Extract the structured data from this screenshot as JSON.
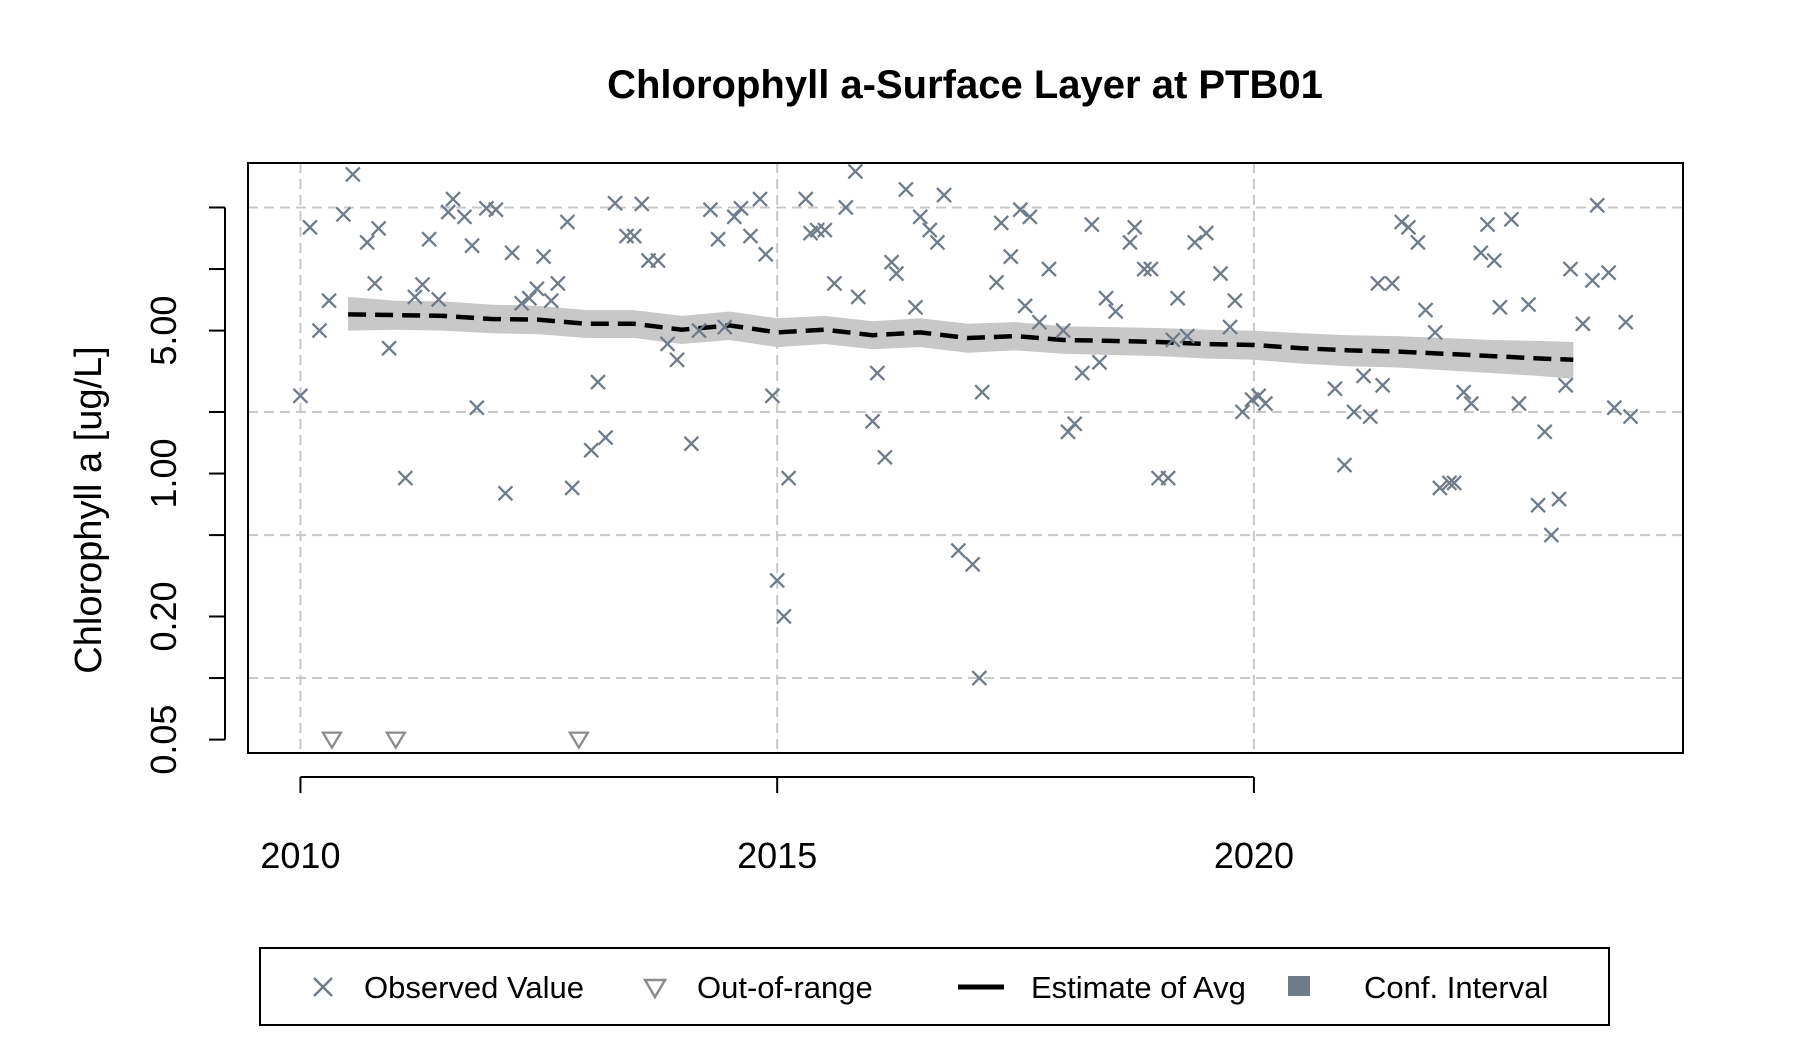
{
  "chart_data": {
    "type": "scatter",
    "title": "Chlorophyll a-Surface Layer at PTB01",
    "xlabel": "",
    "ylabel": "Chlorophyll a [ug/L]",
    "y_scale": "log",
    "xlim": [
      2009.45,
      2024.5
    ],
    "ylim": [
      0.043,
      33
    ],
    "x_ticks": [
      2010,
      2015,
      2020
    ],
    "x_tick_labels": [
      "2010",
      "2015",
      "2020"
    ],
    "y_ticks": [
      0.05,
      0.2,
      1,
      5
    ],
    "y_tick_labels": [
      "0.05",
      "0.20",
      "1.00",
      "5.00"
    ],
    "y_minor_ticks": [
      0.1,
      0.5,
      2,
      10,
      20
    ],
    "grid": "on",
    "legend_position": "bottom",
    "colors": {
      "observed": "#6e7b8b",
      "out_of_range": "#8c8c8c",
      "estimate": "#000000",
      "ci_band": "#c8c8c8",
      "ci_legend": "#6e7b8b"
    },
    "legend": [
      {
        "label": "Observed Value",
        "symbol": "x"
      },
      {
        "label": "Out-of-range",
        "symbol": "triangle-down"
      },
      {
        "label": "Estimate of Avg",
        "symbol": "dashed-line"
      },
      {
        "label": "Conf. Interval",
        "symbol": "square"
      }
    ],
    "series": [
      {
        "name": "Observed Value",
        "marker": "x",
        "points": [
          [
            2010.0,
            2.4
          ],
          [
            2010.1,
            16.0
          ],
          [
            2010.2,
            5.0
          ],
          [
            2010.3,
            7.0
          ],
          [
            2010.45,
            18.5
          ],
          [
            2010.55,
            29.0
          ],
          [
            2010.7,
            13.5
          ],
          [
            2010.78,
            8.5
          ],
          [
            2010.82,
            15.8
          ],
          [
            2010.93,
            4.1
          ],
          [
            2011.1,
            0.95
          ],
          [
            2011.2,
            7.3
          ],
          [
            2011.28,
            8.4
          ],
          [
            2011.35,
            14.0
          ],
          [
            2011.45,
            7.1
          ],
          [
            2011.55,
            19.0
          ],
          [
            2011.6,
            22.0
          ],
          [
            2011.72,
            18.0
          ],
          [
            2011.8,
            13.0
          ],
          [
            2011.85,
            2.1
          ],
          [
            2011.95,
            19.8
          ],
          [
            2012.05,
            19.5
          ],
          [
            2012.15,
            0.8
          ],
          [
            2012.22,
            12.0
          ],
          [
            2012.32,
            6.8
          ],
          [
            2012.4,
            7.2
          ],
          [
            2012.48,
            8.0
          ],
          [
            2012.55,
            11.5
          ],
          [
            2012.63,
            7.0
          ],
          [
            2012.7,
            8.5
          ],
          [
            2012.8,
            17.0
          ],
          [
            2012.85,
            0.85
          ],
          [
            2013.05,
            1.3
          ],
          [
            2013.12,
            2.8
          ],
          [
            2013.2,
            1.5
          ],
          [
            2013.3,
            21.0
          ],
          [
            2013.42,
            14.5
          ],
          [
            2013.5,
            14.5
          ],
          [
            2013.58,
            20.8
          ],
          [
            2013.65,
            11.0
          ],
          [
            2013.75,
            11.0
          ],
          [
            2013.85,
            4.3
          ],
          [
            2013.95,
            3.6
          ],
          [
            2014.1,
            1.4
          ],
          [
            2014.18,
            5.0
          ],
          [
            2014.3,
            19.5
          ],
          [
            2014.38,
            14.0
          ],
          [
            2014.45,
            5.2
          ],
          [
            2014.55,
            18.0
          ],
          [
            2014.62,
            19.8
          ],
          [
            2014.72,
            14.5
          ],
          [
            2014.82,
            22.0
          ],
          [
            2014.88,
            11.8
          ],
          [
            2014.95,
            2.4
          ],
          [
            2015.0,
            0.3
          ],
          [
            2015.07,
            0.2
          ],
          [
            2015.12,
            0.95
          ],
          [
            2015.3,
            22.0
          ],
          [
            2015.35,
            15.0
          ],
          [
            2015.42,
            15.5
          ],
          [
            2015.5,
            15.5
          ],
          [
            2015.6,
            8.5
          ],
          [
            2015.72,
            20.0
          ],
          [
            2015.82,
            30.0
          ],
          [
            2015.85,
            7.3
          ],
          [
            2016.0,
            1.8
          ],
          [
            2016.05,
            3.1
          ],
          [
            2016.13,
            1.2
          ],
          [
            2016.2,
            10.8
          ],
          [
            2016.25,
            9.5
          ],
          [
            2016.35,
            24.5
          ],
          [
            2016.45,
            6.5
          ],
          [
            2016.5,
            18.0
          ],
          [
            2016.6,
            15.5
          ],
          [
            2016.68,
            13.5
          ],
          [
            2016.75,
            23.0
          ],
          [
            2016.9,
            0.42
          ],
          [
            2017.05,
            0.36
          ],
          [
            2017.12,
            0.1
          ],
          [
            2017.15,
            2.5
          ],
          [
            2017.3,
            8.6
          ],
          [
            2017.35,
            16.8
          ],
          [
            2017.45,
            11.5
          ],
          [
            2017.55,
            19.5
          ],
          [
            2017.6,
            6.6
          ],
          [
            2017.65,
            18.0
          ],
          [
            2017.75,
            5.5
          ],
          [
            2017.85,
            10.0
          ],
          [
            2018.0,
            5.0
          ],
          [
            2018.05,
            1.6
          ],
          [
            2018.12,
            1.75
          ],
          [
            2018.2,
            3.1
          ],
          [
            2018.3,
            16.5
          ],
          [
            2018.38,
            3.5
          ],
          [
            2018.45,
            7.2
          ],
          [
            2018.55,
            6.2
          ],
          [
            2018.7,
            13.5
          ],
          [
            2018.75,
            16.0
          ],
          [
            2018.85,
            10.0
          ],
          [
            2018.92,
            10.0
          ],
          [
            2019.0,
            0.95
          ],
          [
            2019.1,
            0.95
          ],
          [
            2019.15,
            4.5
          ],
          [
            2019.2,
            7.2
          ],
          [
            2019.3,
            4.7
          ],
          [
            2019.38,
            13.5
          ],
          [
            2019.5,
            15.0
          ],
          [
            2019.65,
            9.5
          ],
          [
            2019.75,
            5.2
          ],
          [
            2019.8,
            7.0
          ],
          [
            2019.88,
            2.0
          ],
          [
            2019.98,
            2.3
          ],
          [
            2020.05,
            2.4
          ],
          [
            2020.12,
            2.2
          ],
          [
            2020.85,
            2.6
          ],
          [
            2020.95,
            1.1
          ],
          [
            2021.05,
            2.0
          ],
          [
            2021.15,
            3.0
          ],
          [
            2021.22,
            1.9
          ],
          [
            2021.3,
            8.5
          ],
          [
            2021.35,
            2.7
          ],
          [
            2021.45,
            8.5
          ],
          [
            2021.55,
            17.0
          ],
          [
            2021.62,
            16.0
          ],
          [
            2021.72,
            13.5
          ],
          [
            2021.8,
            6.3
          ],
          [
            2021.9,
            4.9
          ],
          [
            2021.95,
            0.85
          ],
          [
            2022.05,
            0.9
          ],
          [
            2022.1,
            0.9
          ],
          [
            2022.2,
            2.5
          ],
          [
            2022.28,
            2.2
          ],
          [
            2022.38,
            12.0
          ],
          [
            2022.45,
            16.5
          ],
          [
            2022.52,
            11.0
          ],
          [
            2022.58,
            6.5
          ],
          [
            2022.7,
            17.5
          ],
          [
            2022.78,
            2.2
          ],
          [
            2022.88,
            6.7
          ],
          [
            2022.98,
            0.7
          ],
          [
            2023.05,
            1.6
          ],
          [
            2023.12,
            0.5
          ],
          [
            2023.2,
            0.75
          ],
          [
            2023.27,
            2.7
          ],
          [
            2023.32,
            10.0
          ],
          [
            2023.45,
            5.4
          ],
          [
            2023.55,
            8.8
          ],
          [
            2023.6,
            20.5
          ],
          [
            2023.72,
            9.6
          ],
          [
            2023.78,
            2.1
          ],
          [
            2023.9,
            5.5
          ],
          [
            2023.95,
            1.9
          ]
        ]
      },
      {
        "name": "Out-of-range",
        "marker": "triangle-down",
        "points": [
          [
            2010.33,
            0.05
          ],
          [
            2011.0,
            0.05
          ],
          [
            2012.92,
            0.05
          ]
        ]
      },
      {
        "name": "Estimate of Avg",
        "line_style": "dashed",
        "points": [
          [
            2010.5,
            6.0
          ],
          [
            2011.0,
            5.95
          ],
          [
            2011.5,
            5.9
          ],
          [
            2012.0,
            5.7
          ],
          [
            2012.5,
            5.65
          ],
          [
            2013.0,
            5.4
          ],
          [
            2013.5,
            5.4
          ],
          [
            2014.0,
            5.05
          ],
          [
            2014.5,
            5.3
          ],
          [
            2015.0,
            4.9
          ],
          [
            2015.5,
            5.05
          ],
          [
            2016.0,
            4.75
          ],
          [
            2016.5,
            4.9
          ],
          [
            2017.0,
            4.6
          ],
          [
            2017.5,
            4.7
          ],
          [
            2018.0,
            4.5
          ],
          [
            2018.5,
            4.45
          ],
          [
            2019.0,
            4.4
          ],
          [
            2019.5,
            4.3
          ],
          [
            2020.0,
            4.25
          ],
          [
            2020.5,
            4.1
          ],
          [
            2021.0,
            4.0
          ],
          [
            2021.5,
            3.95
          ],
          [
            2022.0,
            3.85
          ],
          [
            2022.5,
            3.75
          ],
          [
            2023.0,
            3.65
          ],
          [
            2023.35,
            3.6
          ]
        ]
      },
      {
        "name": "Conf. Interval",
        "band": true,
        "x": [
          2010.5,
          2011.0,
          2011.5,
          2012.0,
          2012.5,
          2013.0,
          2013.5,
          2014.0,
          2014.5,
          2015.0,
          2015.5,
          2016.0,
          2016.5,
          2017.0,
          2017.5,
          2018.0,
          2018.5,
          2019.0,
          2019.5,
          2020.0,
          2020.5,
          2021.0,
          2021.5,
          2022.0,
          2022.5,
          2023.0,
          2023.35
        ],
        "lower": [
          5.0,
          5.05,
          5.0,
          4.85,
          4.8,
          4.6,
          4.6,
          4.3,
          4.5,
          4.15,
          4.3,
          4.05,
          4.15,
          3.9,
          4.0,
          3.85,
          3.8,
          3.75,
          3.65,
          3.6,
          3.45,
          3.35,
          3.3,
          3.2,
          3.1,
          3.0,
          2.9
        ],
        "upper": [
          7.3,
          7.0,
          6.95,
          6.7,
          6.6,
          6.3,
          6.3,
          5.9,
          6.2,
          5.75,
          5.9,
          5.55,
          5.75,
          5.4,
          5.5,
          5.25,
          5.2,
          5.15,
          5.05,
          5.0,
          4.85,
          4.75,
          4.7,
          4.6,
          4.5,
          4.45,
          4.4
        ]
      }
    ]
  }
}
